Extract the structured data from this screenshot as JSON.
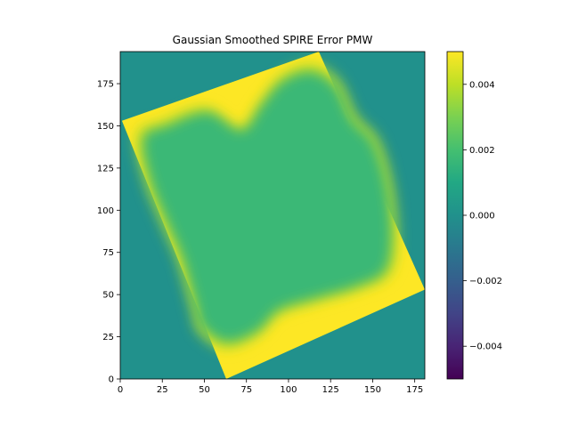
{
  "chart_data": {
    "type": "heatmap",
    "title": "Gaussian Smoothed SPIRE Error PMW",
    "xlabel": "",
    "ylabel": "",
    "xlim": [
      0,
      181
    ],
    "ylim": [
      0,
      194
    ],
    "x_ticks": [
      0,
      25,
      50,
      75,
      100,
      125,
      150,
      175
    ],
    "y_ticks": [
      0,
      25,
      50,
      75,
      100,
      125,
      150,
      175
    ],
    "origin": "lower",
    "colormap": "viridis",
    "colorbar": {
      "vmin": -0.005,
      "vmax": 0.005,
      "ticks": [
        -0.004,
        -0.002,
        0.0,
        0.002,
        0.004
      ],
      "tick_labels": [
        "−0.004",
        "−0.002",
        "0.000",
        "0.002",
        "0.004"
      ]
    },
    "background_value": 0.0,
    "footprint": {
      "description_values": "rotated square map; edge region saturated at high error, interior ~0.0015-0.003",
      "edge_value": 0.005,
      "interior_value": 0.0017,
      "outer_corners": [
        [
          1,
          153
        ],
        [
          118,
          194
        ],
        [
          181,
          53
        ],
        [
          63,
          0
        ]
      ],
      "inner_blob_points": [
        [
          14,
          143
        ],
        [
          28,
          150
        ],
        [
          52,
          158
        ],
        [
          72,
          147
        ],
        [
          84,
          162
        ],
        [
          96,
          176
        ],
        [
          113,
          182
        ],
        [
          128,
          173
        ],
        [
          138,
          153
        ],
        [
          150,
          140
        ],
        [
          158,
          115
        ],
        [
          161,
          85
        ],
        [
          157,
          64
        ],
        [
          140,
          55
        ],
        [
          116,
          48
        ],
        [
          94,
          41
        ],
        [
          82,
          29
        ],
        [
          64,
          22
        ],
        [
          49,
          31
        ],
        [
          45,
          44
        ],
        [
          37,
          72
        ],
        [
          27,
          95
        ],
        [
          18,
          118
        ]
      ]
    }
  }
}
